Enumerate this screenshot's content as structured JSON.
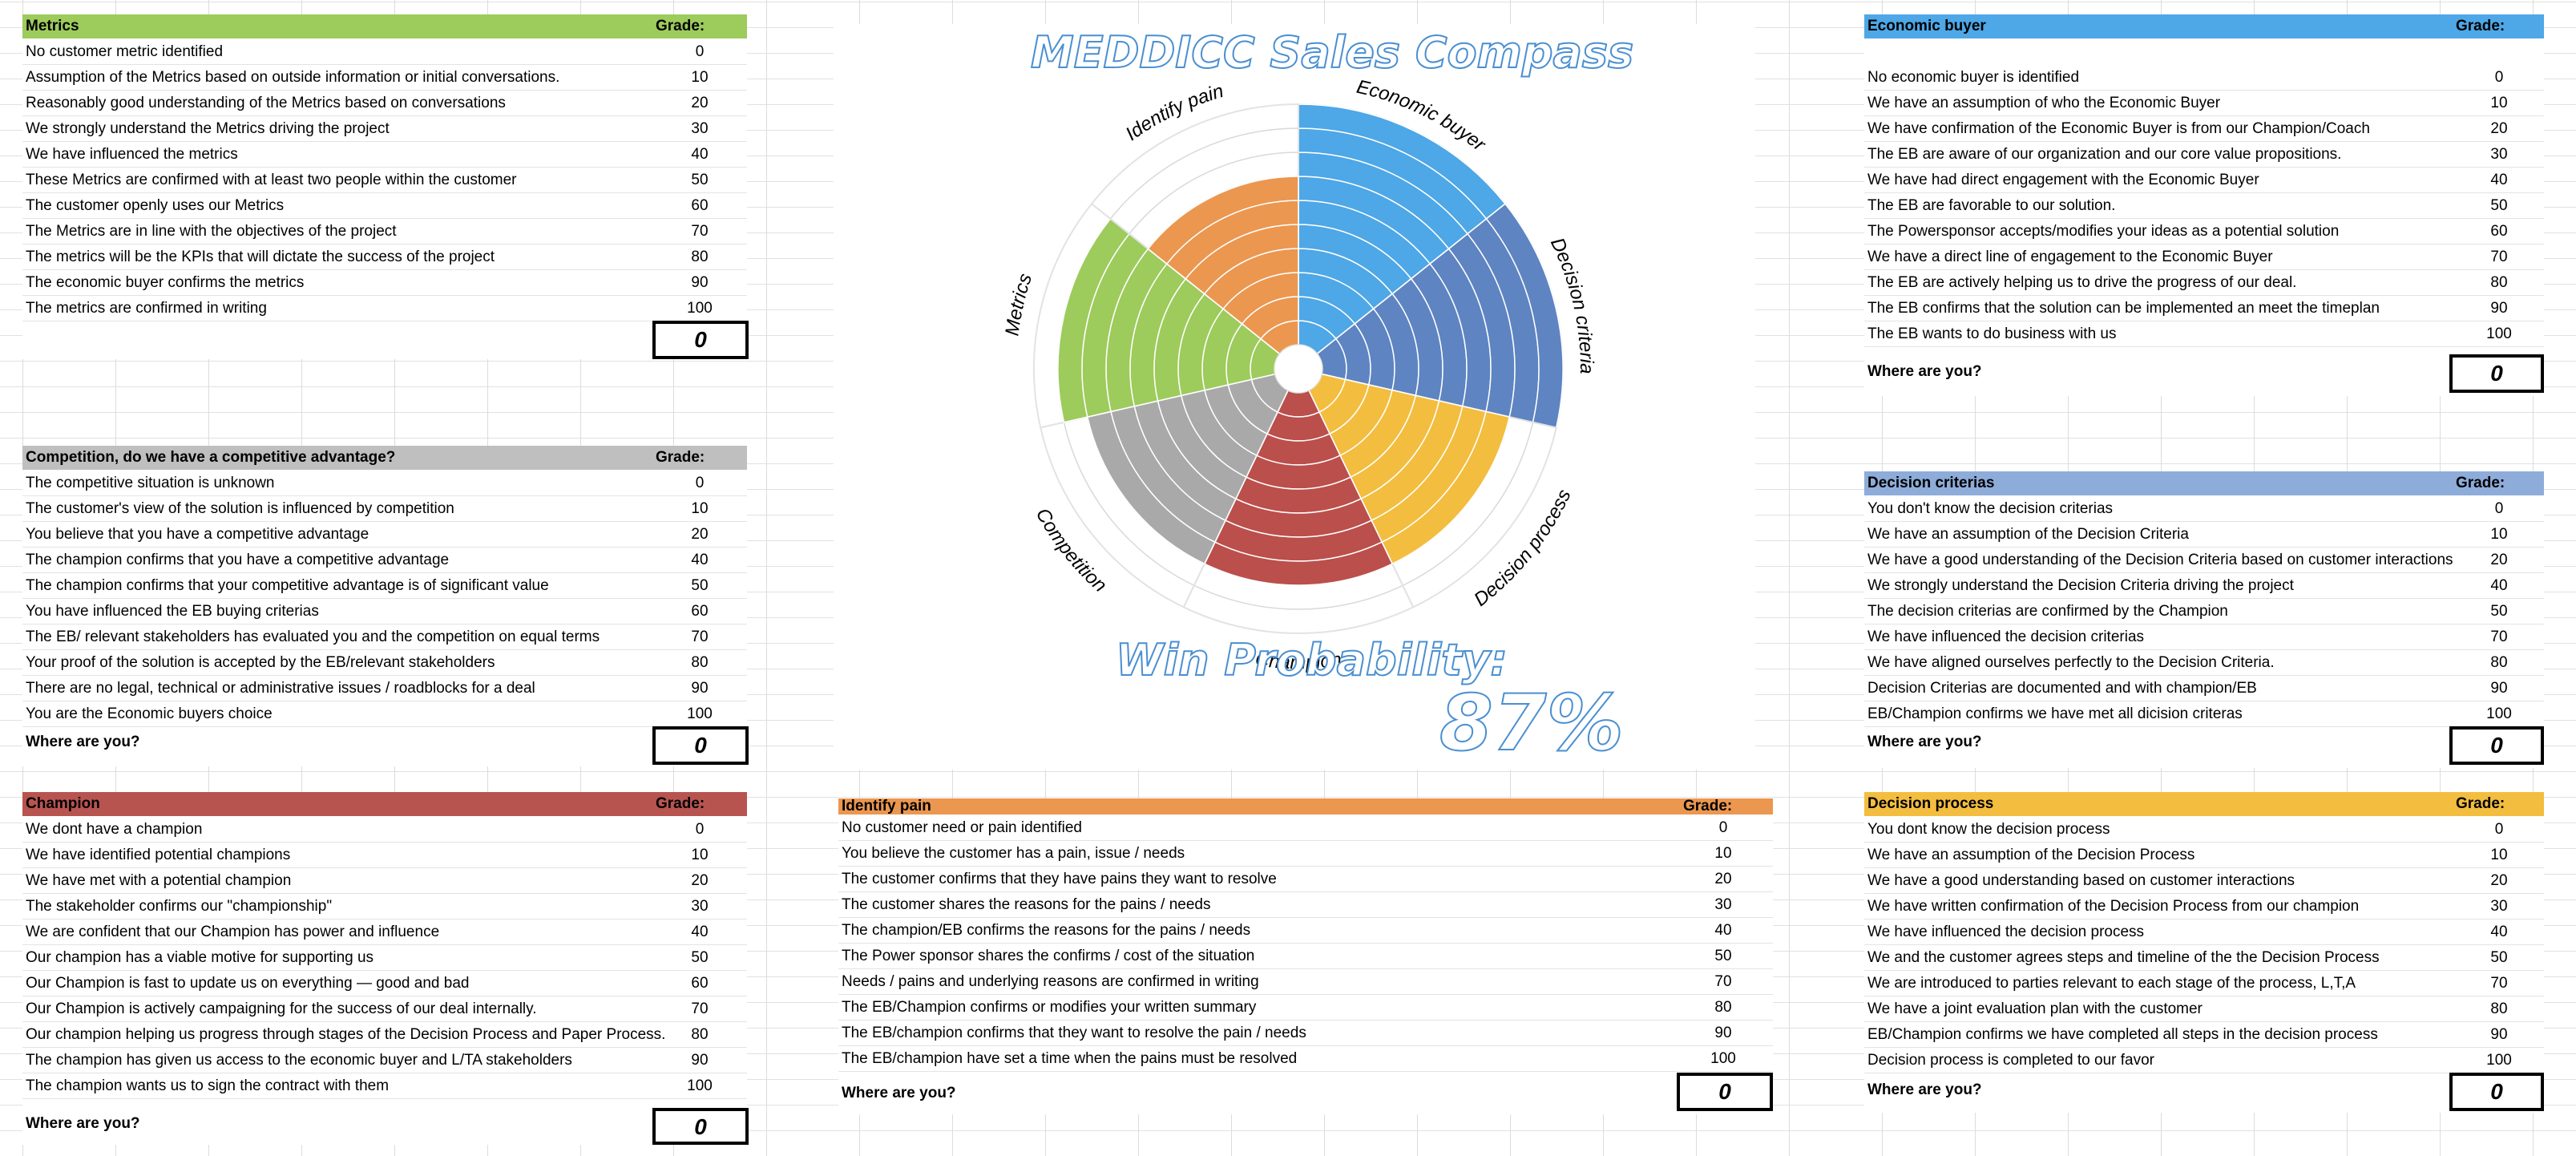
{
  "title": "MEDDICC Sales Compass",
  "win_probability": {
    "label": "Win Probability:",
    "value": "87%"
  },
  "wheel": {
    "segments": [
      {
        "name": "Economic buyer",
        "color": "#4ea7e6",
        "rings": 10
      },
      {
        "name": "Decision criteria",
        "color": "#5e84c2",
        "rings": 10
      },
      {
        "name": "Decision process",
        "color": "#f3bd3f",
        "rings": 8
      },
      {
        "name": "Champion",
        "color": "#bb4f4b",
        "rings": 8
      },
      {
        "name": "Competition",
        "color": "#a9a9a9",
        "rings": 8
      },
      {
        "name": "Metrics",
        "color": "#9dcb5c",
        "rings": 9
      },
      {
        "name": "Identify pain",
        "color": "#eb9750",
        "rings": 7
      }
    ]
  },
  "blocks": {
    "metrics": {
      "title": "Metrics",
      "grade_label": "Grade:",
      "color": "#9dcb5c",
      "rows": [
        {
          "text": "No customer metric identified",
          "grade": "0"
        },
        {
          "text": "Assumption of the Metrics based on outside information or initial conversations.",
          "grade": "10"
        },
        {
          "text": "Reasonably good understanding of the Metrics based on conversations",
          "grade": "20"
        },
        {
          "text": "We strongly understand the Metrics driving the project",
          "grade": "30"
        },
        {
          "text": "We have influenced the metrics",
          "grade": "40"
        },
        {
          "text": "These Metrics are confirmed with at least two people within the customer",
          "grade": "50"
        },
        {
          "text": "The customer openly uses our Metrics",
          "grade": "60"
        },
        {
          "text": "The Metrics are in line with the objectives of the project",
          "grade": "70"
        },
        {
          "text": "The metrics will be the KPIs that will dictate the success of the project",
          "grade": "80"
        },
        {
          "text": "The economic buyer confirms the metrics",
          "grade": "90"
        },
        {
          "text": "The metrics are confirmed in writing",
          "grade": "100"
        }
      ],
      "where_label": "",
      "result": "0"
    },
    "competition": {
      "title": "Competition, do we have a competitive advantage?",
      "grade_label": "Grade:",
      "color": "#bfbfbf",
      "rows": [
        {
          "text": "The competitive situation is unknown",
          "grade": "0"
        },
        {
          "text": "The customer's view of the solution is influenced by competition",
          "grade": "10"
        },
        {
          "text": "You believe that you have a competitive advantage",
          "grade": "20"
        },
        {
          "text": "The champion confirms that you have a competitive advantage",
          "grade": "40"
        },
        {
          "text": "The champion confirms that your competitive advantage is of significant value",
          "grade": "50"
        },
        {
          "text": "You have influenced the EB  buying criterias",
          "grade": "60"
        },
        {
          "text": "The EB/ relevant stakeholders has evaluated you and the competition on equal terms",
          "grade": "70"
        },
        {
          "text": "Your proof of the solution is accepted by the EB/relevant stakeholders",
          "grade": "80"
        },
        {
          "text": "There are no legal, technical or administrative issues / roadblocks for a deal",
          "grade": "90"
        },
        {
          "text": "You are the Economic buyers choice",
          "grade": "100"
        }
      ],
      "where_label": "Where are you?",
      "result": "0"
    },
    "champion": {
      "title": "Champion",
      "grade_label": "Grade:",
      "color": "#b85450",
      "rows": [
        {
          "text": "We dont have a champion",
          "grade": "0"
        },
        {
          "text": "We have identified potential champions",
          "grade": "10"
        },
        {
          "text": "We have met with a potential champion",
          "grade": "20"
        },
        {
          "text": "The stakeholder confirms our \"championship\"",
          "grade": "30"
        },
        {
          "text": "We are confident that our Champion has power and influence",
          "grade": "40"
        },
        {
          "text": "Our champion has a viable motive for supporting us",
          "grade": "50"
        },
        {
          "text": "Our Champion is fast to update us on everything — good and bad",
          "grade": "60"
        },
        {
          "text": "Our Champion is actively campaigning for the success of our deal internally.",
          "grade": "70"
        },
        {
          "text": "Our champion helping us progress through stages of the Decision Process and Paper Process.",
          "grade": "80"
        },
        {
          "text": "The champion has given us access to the economic buyer and L/TA stakeholders",
          "grade": "90"
        },
        {
          "text": "The champion wants us to sign the contract with them",
          "grade": "100"
        }
      ],
      "where_label": "Where are you?",
      "result": "0"
    },
    "identify_pain": {
      "title": "Identify pain",
      "grade_label": "Grade:",
      "color": "#eb9750",
      "rows": [
        {
          "text": "No customer need or pain identified",
          "grade": "0"
        },
        {
          "text": "You believe the customer has a pain, issue / needs",
          "grade": "10"
        },
        {
          "text": "The customer confirms that they have pains  they want to resolve",
          "grade": "20"
        },
        {
          "text": "The customer shares the reasons for the pains / needs",
          "grade": "30"
        },
        {
          "text": "The champion/EB confirms the reasons for the pains / needs",
          "grade": "40"
        },
        {
          "text": "The Power sponsor shares the confirms / cost of the situation",
          "grade": "50"
        },
        {
          "text": "Needs / pains and underlying reasons are confirmed in writing",
          "grade": "70"
        },
        {
          "text": "The EB/Champion confirms or modifies your written summary",
          "grade": "80"
        },
        {
          "text": "The EB/champion confirms that they want to resolve the pain / needs",
          "grade": "90"
        },
        {
          "text": "The EB/champion have set a time when the pains must be resolved",
          "grade": "100"
        }
      ],
      "where_label": "Where are you?",
      "result": "0"
    },
    "economic_buyer": {
      "title": "Economic buyer",
      "grade_label": "Grade:",
      "color": "#4ea7e6",
      "rows": [
        {
          "text": "No economic buyer is identified",
          "grade": "0"
        },
        {
          "text": "We have an assumption of who the Economic Buyer",
          "grade": "10"
        },
        {
          "text": "We have confirmation of the Economic Buyer is from our Champion/Coach",
          "grade": "20"
        },
        {
          "text": "The EB  are aware of our organization and our core value propositions.",
          "grade": "30"
        },
        {
          "text": "We have had direct engagement with the Economic Buyer",
          "grade": "40"
        },
        {
          "text": "The EB are favorable to our solution.",
          "grade": "50"
        },
        {
          "text": "The Powersponsor accepts/modifies your ideas as a potential solution",
          "grade": "60"
        },
        {
          "text": "We have a direct line of engagement to the Economic Buyer",
          "grade": "70"
        },
        {
          "text": "The EB are actively helping us to drive the progress of our deal.",
          "grade": "80"
        },
        {
          "text": "The EB confirms that the solution can be implemented an meet the timeplan",
          "grade": "90"
        },
        {
          "text": "The EB wants to do business with us",
          "grade": "100"
        }
      ],
      "where_label": "Where are you?",
      "result": "0"
    },
    "decision_criteria": {
      "title": "Decision criterias",
      "grade_label": "Grade:",
      "color": "#8eacd9",
      "rows": [
        {
          "text": "You don't know the decision criterias",
          "grade": "0"
        },
        {
          "text": "We have an assumption of the Decision Criteria",
          "grade": "10"
        },
        {
          "text": "We have a  good understanding of the Decision Criteria based on customer interactions",
          "grade": "20"
        },
        {
          "text": "We strongly understand the Decision Criteria driving the project",
          "grade": "40"
        },
        {
          "text": "The decision criterias are confirmed by the Champion",
          "grade": "50"
        },
        {
          "text": "We have influenced the decision criterias",
          "grade": "70"
        },
        {
          "text": "We have aligned ourselves perfectly to the Decision Criteria.",
          "grade": "80"
        },
        {
          "text": "Decision Criterias are documented and with champion/EB",
          "grade": "90"
        },
        {
          "text": "EB/Champion confirms we have met all dicision criteras",
          "grade": "100"
        }
      ],
      "where_label": "Where are you?",
      "result": "0"
    },
    "decision_process": {
      "title": "Decision process",
      "grade_label": "Grade:",
      "color": "#f3bd3f",
      "rows": [
        {
          "text": "You dont know the decision process",
          "grade": "0"
        },
        {
          "text": "We have an assumption of the Decision Process",
          "grade": "10"
        },
        {
          "text": "We have a  good understanding based on customer interactions",
          "grade": "20"
        },
        {
          "text": "We have written confirmation of the Decision Process from our champion",
          "grade": "30"
        },
        {
          "text": "We have influenced the decision process",
          "grade": "40"
        },
        {
          "text": "We and the customer agrees steps and timeline of the the Decision Process",
          "grade": "50"
        },
        {
          "text": "We are introduced to parties relevant to each stage of the process, L,T,A",
          "grade": "70"
        },
        {
          "text": "We have a joint evaluation plan with the customer",
          "grade": "80"
        },
        {
          "text": "EB/Champion confirms we have completed all steps in the decision process",
          "grade": "90"
        },
        {
          "text": "Decision process is completed to our favor",
          "grade": "100"
        }
      ],
      "where_label": "Where are you?",
      "result": "0"
    }
  }
}
